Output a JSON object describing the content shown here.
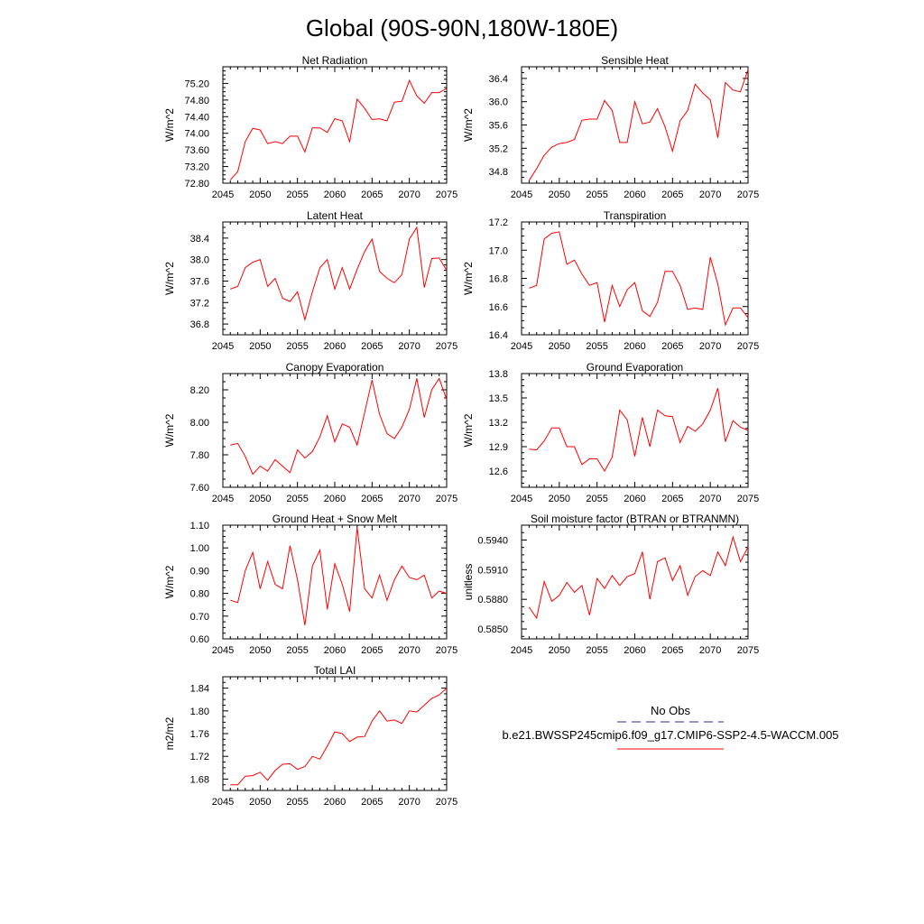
{
  "figure_title": "Global (90S-90N,180W-180E)",
  "colors": {
    "model": "#ff0000",
    "obs": "#2b2b9e",
    "axis": "#000000"
  },
  "legend": {
    "obs_label": "No Obs",
    "model_label": "b.e21.BWSSP245cmip6.f09_g17.CMIP6-SSP2-4.5-WACCM.005"
  },
  "chart_data": [
    {
      "type": "line",
      "title": "Net Radiation",
      "ylabel": "W/m^2",
      "xlim": [
        2045,
        2075
      ],
      "ylim": [
        72.8,
        75.6
      ],
      "xticks": [
        2045,
        2050,
        2055,
        2060,
        2065,
        2070,
        2075
      ],
      "xtick_labels": [
        "2045",
        "2050",
        "2055",
        "2060",
        "2065",
        "2070",
        "2075"
      ],
      "yticks": [
        72.8,
        73.2,
        73.6,
        74.0,
        74.4,
        74.8,
        75.2
      ],
      "ytick_labels": [
        "72.80",
        "73.20",
        "73.60",
        "74.00",
        "74.40",
        "74.80",
        "75.20"
      ],
      "series": [
        {
          "name": "b.e21.BWSSP245cmip6.f09_g17.CMIP6-SSP2-4.5-WACCM.005",
          "x": [
            2046,
            2047,
            2048,
            2049,
            2050,
            2051,
            2052,
            2053,
            2054,
            2055,
            2056,
            2057,
            2058,
            2059,
            2060,
            2061,
            2062,
            2063,
            2064,
            2065,
            2066,
            2067,
            2068,
            2069,
            2070,
            2071,
            2072,
            2073,
            2074,
            2075
          ],
          "values": [
            72.88,
            73.08,
            73.8,
            74.12,
            74.08,
            73.75,
            73.8,
            73.75,
            73.93,
            73.93,
            73.55,
            74.13,
            74.13,
            74.02,
            74.35,
            74.3,
            73.8,
            74.82,
            74.6,
            74.33,
            74.35,
            74.3,
            74.75,
            74.77,
            75.27,
            74.9,
            74.72,
            74.98,
            74.98,
            75.08
          ]
        }
      ]
    },
    {
      "type": "line",
      "title": "Sensible Heat",
      "ylabel": "W/m^2",
      "xlim": [
        2045,
        2075
      ],
      "ylim": [
        34.6,
        36.6
      ],
      "xticks": [
        2045,
        2050,
        2055,
        2060,
        2065,
        2070,
        2075
      ],
      "xtick_labels": [
        "2045",
        "2050",
        "2055",
        "2060",
        "2065",
        "2070",
        "2075"
      ],
      "yticks": [
        34.8,
        35.2,
        35.6,
        36.0,
        36.4
      ],
      "ytick_labels": [
        "34.8",
        "35.2",
        "35.6",
        "36.0",
        "36.4"
      ],
      "series": [
        {
          "name": "b.e21.BWSSP245cmip6.f09_g17.CMIP6-SSP2-4.5-WACCM.005",
          "x": [
            2046,
            2047,
            2048,
            2049,
            2050,
            2051,
            2052,
            2053,
            2054,
            2055,
            2056,
            2057,
            2058,
            2059,
            2060,
            2061,
            2062,
            2063,
            2064,
            2065,
            2066,
            2067,
            2068,
            2069,
            2070,
            2071,
            2072,
            2073,
            2074,
            2075
          ],
          "values": [
            34.65,
            34.85,
            35.08,
            35.22,
            35.28,
            35.3,
            35.35,
            35.68,
            35.7,
            35.7,
            36.02,
            35.85,
            35.3,
            35.3,
            36.0,
            35.62,
            35.65,
            35.88,
            35.57,
            35.15,
            35.67,
            35.85,
            36.3,
            36.15,
            36.03,
            35.38,
            36.33,
            36.2,
            36.17,
            36.55
          ]
        }
      ]
    },
    {
      "type": "line",
      "title": "Latent Heat",
      "ylabel": "W/m^2",
      "xlim": [
        2045,
        2075
      ],
      "ylim": [
        36.6,
        38.7
      ],
      "xticks": [
        2045,
        2050,
        2055,
        2060,
        2065,
        2070,
        2075
      ],
      "xtick_labels": [
        "2045",
        "2050",
        "2055",
        "2060",
        "2065",
        "2070",
        "2075"
      ],
      "yticks": [
        36.8,
        37.2,
        37.6,
        38.0,
        38.4
      ],
      "ytick_labels": [
        "36.8",
        "37.2",
        "37.6",
        "38.0",
        "38.4"
      ],
      "series": [
        {
          "name": "b.e21.BWSSP245cmip6.f09_g17.CMIP6-SSP2-4.5-WACCM.005",
          "x": [
            2046,
            2047,
            2048,
            2049,
            2050,
            2051,
            2052,
            2053,
            2054,
            2055,
            2056,
            2057,
            2058,
            2059,
            2060,
            2061,
            2062,
            2063,
            2064,
            2065,
            2066,
            2067,
            2068,
            2069,
            2070,
            2071,
            2072,
            2073,
            2074,
            2075
          ],
          "values": [
            37.45,
            37.5,
            37.85,
            37.95,
            38.0,
            37.5,
            37.65,
            37.28,
            37.22,
            37.4,
            36.88,
            37.4,
            37.85,
            38.0,
            37.45,
            37.85,
            37.45,
            37.82,
            38.15,
            38.38,
            37.78,
            37.65,
            37.57,
            37.72,
            38.38,
            38.6,
            37.48,
            38.02,
            38.03,
            37.8
          ]
        }
      ]
    },
    {
      "type": "line",
      "title": "Transpiration",
      "ylabel": "W/m^2",
      "xlim": [
        2045,
        2075
      ],
      "ylim": [
        16.4,
        17.2
      ],
      "xticks": [
        2045,
        2050,
        2055,
        2060,
        2065,
        2070,
        2075
      ],
      "xtick_labels": [
        "2045",
        "2050",
        "2055",
        "2060",
        "2065",
        "2070",
        "2075"
      ],
      "yticks": [
        16.4,
        16.6,
        16.8,
        17.0,
        17.2
      ],
      "ytick_labels": [
        "16.4",
        "16.6",
        "16.8",
        "17.0",
        "17.2"
      ],
      "series": [
        {
          "name": "b.e21.BWSSP245cmip6.f09_g17.CMIP6-SSP2-4.5-WACCM.005",
          "x": [
            2046,
            2047,
            2048,
            2049,
            2050,
            2051,
            2052,
            2053,
            2054,
            2055,
            2056,
            2057,
            2058,
            2059,
            2060,
            2061,
            2062,
            2063,
            2064,
            2065,
            2066,
            2067,
            2068,
            2069,
            2070,
            2071,
            2072,
            2073,
            2074,
            2075
          ],
          "values": [
            16.73,
            16.75,
            17.08,
            17.12,
            17.13,
            16.9,
            16.93,
            16.83,
            16.75,
            16.77,
            16.49,
            16.75,
            16.6,
            16.72,
            16.77,
            16.57,
            16.53,
            16.63,
            16.85,
            16.85,
            16.75,
            16.58,
            16.59,
            16.58,
            16.95,
            16.76,
            16.47,
            16.59,
            16.59,
            16.52
          ]
        }
      ]
    },
    {
      "type": "line",
      "title": "Canopy Evaporation",
      "ylabel": "W/m^2",
      "xlim": [
        2045,
        2075
      ],
      "ylim": [
        7.6,
        8.3
      ],
      "xticks": [
        2045,
        2050,
        2055,
        2060,
        2065,
        2070,
        2075
      ],
      "xtick_labels": [
        "2045",
        "2050",
        "2055",
        "2060",
        "2065",
        "2070",
        "2075"
      ],
      "yticks": [
        7.6,
        7.8,
        8.0,
        8.2
      ],
      "ytick_labels": [
        "7.60",
        "7.80",
        "8.00",
        "8.20"
      ],
      "series": [
        {
          "name": "b.e21.BWSSP245cmip6.f09_g17.CMIP6-SSP2-4.5-WACCM.005",
          "x": [
            2046,
            2047,
            2048,
            2049,
            2050,
            2051,
            2052,
            2053,
            2054,
            2055,
            2056,
            2057,
            2058,
            2059,
            2060,
            2061,
            2062,
            2063,
            2064,
            2065,
            2066,
            2067,
            2068,
            2069,
            2070,
            2071,
            2072,
            2073,
            2074,
            2075
          ],
          "values": [
            7.86,
            7.87,
            7.79,
            7.68,
            7.73,
            7.7,
            7.77,
            7.73,
            7.69,
            7.83,
            7.78,
            7.82,
            7.91,
            8.04,
            7.88,
            7.99,
            7.97,
            7.86,
            8.06,
            8.26,
            8.05,
            7.93,
            7.9,
            7.97,
            8.08,
            8.27,
            8.03,
            8.2,
            8.27,
            8.14
          ]
        }
      ]
    },
    {
      "type": "line",
      "title": "Ground Evaporation",
      "ylabel": "W/m^2",
      "xlim": [
        2045,
        2075
      ],
      "ylim": [
        12.4,
        13.8
      ],
      "xticks": [
        2045,
        2050,
        2055,
        2060,
        2065,
        2070,
        2075
      ],
      "xtick_labels": [
        "2045",
        "2050",
        "2055",
        "2060",
        "2065",
        "2070",
        "2075"
      ],
      "yticks": [
        12.6,
        12.9,
        13.2,
        13.5,
        13.8
      ],
      "ytick_labels": [
        "12.6",
        "12.9",
        "13.2",
        "13.5",
        "13.8"
      ],
      "series": [
        {
          "name": "b.e21.BWSSP245cmip6.f09_g17.CMIP6-SSP2-4.5-WACCM.005",
          "x": [
            2046,
            2047,
            2048,
            2049,
            2050,
            2051,
            2052,
            2053,
            2054,
            2055,
            2056,
            2057,
            2058,
            2059,
            2060,
            2061,
            2062,
            2063,
            2064,
            2065,
            2066,
            2067,
            2068,
            2069,
            2070,
            2071,
            2072,
            2073,
            2074,
            2075
          ],
          "values": [
            12.87,
            12.86,
            12.97,
            13.13,
            13.13,
            12.9,
            12.9,
            12.68,
            12.75,
            12.75,
            12.6,
            12.77,
            13.35,
            13.23,
            12.78,
            13.26,
            12.9,
            13.35,
            13.28,
            13.27,
            12.95,
            13.15,
            13.09,
            13.18,
            13.35,
            13.62,
            12.96,
            13.22,
            13.14,
            13.1
          ]
        }
      ]
    },
    {
      "type": "line",
      "title": "Ground Heat + Snow Melt",
      "ylabel": "W/m^2",
      "xlim": [
        2045,
        2075
      ],
      "ylim": [
        0.6,
        1.1
      ],
      "xticks": [
        2045,
        2050,
        2055,
        2060,
        2065,
        2070,
        2075
      ],
      "xtick_labels": [
        "2045",
        "2050",
        "2055",
        "2060",
        "2065",
        "2070",
        "2075"
      ],
      "yticks": [
        0.6,
        0.7,
        0.8,
        0.9,
        1.0,
        1.1
      ],
      "ytick_labels": [
        "0.60",
        "0.70",
        "0.80",
        "0.90",
        "1.00",
        "1.10"
      ],
      "series": [
        {
          "name": "b.e21.BWSSP245cmip6.f09_g17.CMIP6-SSP2-4.5-WACCM.005",
          "x": [
            2046,
            2047,
            2048,
            2049,
            2050,
            2051,
            2052,
            2053,
            2054,
            2055,
            2056,
            2057,
            2058,
            2059,
            2060,
            2061,
            2062,
            2063,
            2064,
            2065,
            2066,
            2067,
            2068,
            2069,
            2070,
            2071,
            2072,
            2073,
            2074,
            2075
          ],
          "values": [
            0.77,
            0.76,
            0.9,
            0.98,
            0.82,
            0.94,
            0.84,
            0.82,
            1.01,
            0.86,
            0.66,
            0.92,
            0.99,
            0.73,
            0.93,
            0.84,
            0.72,
            1.09,
            0.82,
            0.78,
            0.88,
            0.77,
            0.86,
            0.92,
            0.87,
            0.86,
            0.88,
            0.78,
            0.81,
            0.8
          ]
        }
      ]
    },
    {
      "type": "line",
      "title": "Soil moisture factor (BTRAN or BTRANMN)",
      "ylabel": "unitless",
      "xlim": [
        2045,
        2075
      ],
      "ylim": [
        0.584,
        0.5955
      ],
      "xticks": [
        2045,
        2050,
        2055,
        2060,
        2065,
        2070,
        2075
      ],
      "xtick_labels": [
        "2045",
        "2050",
        "2055",
        "2060",
        "2065",
        "2070",
        "2075"
      ],
      "yticks": [
        0.585,
        0.588,
        0.591,
        0.594
      ],
      "ytick_labels": [
        "0.5850",
        "0.5880",
        "0.5910",
        "0.5940"
      ],
      "series": [
        {
          "name": "b.e21.BWSSP245cmip6.f09_g17.CMIP6-SSP2-4.5-WACCM.005",
          "x": [
            2046,
            2047,
            2048,
            2049,
            2050,
            2051,
            2052,
            2053,
            2054,
            2055,
            2056,
            2057,
            2058,
            2059,
            2060,
            2061,
            2062,
            2063,
            2064,
            2065,
            2066,
            2067,
            2068,
            2069,
            2070,
            2071,
            2072,
            2073,
            2074,
            2075
          ],
          "values": [
            0.5872,
            0.5861,
            0.5898,
            0.5878,
            0.5884,
            0.5897,
            0.5887,
            0.5894,
            0.5864,
            0.5901,
            0.5891,
            0.5904,
            0.5894,
            0.5903,
            0.5906,
            0.5928,
            0.588,
            0.5918,
            0.5922,
            0.5899,
            0.5914,
            0.5884,
            0.5903,
            0.5909,
            0.5904,
            0.5928,
            0.5914,
            0.5943,
            0.5918,
            0.5933
          ]
        }
      ]
    },
    {
      "type": "line",
      "title": "Total LAI",
      "ylabel": "m2/m2",
      "xlim": [
        2045,
        2075
      ],
      "ylim": [
        1.66,
        1.86
      ],
      "xticks": [
        2045,
        2050,
        2055,
        2060,
        2065,
        2070,
        2075
      ],
      "xtick_labels": [
        "2045",
        "2050",
        "2055",
        "2060",
        "2065",
        "2070",
        "2075"
      ],
      "yticks": [
        1.68,
        1.72,
        1.76,
        1.8,
        1.84
      ],
      "ytick_labels": [
        "1.68",
        "1.72",
        "1.76",
        "1.80",
        "1.84"
      ],
      "series": [
        {
          "name": "b.e21.BWSSP245cmip6.f09_g17.CMIP6-SSP2-4.5-WACCM.005",
          "x": [
            2046,
            2047,
            2048,
            2049,
            2050,
            2051,
            2052,
            2053,
            2054,
            2055,
            2056,
            2057,
            2058,
            2059,
            2060,
            2061,
            2062,
            2063,
            2064,
            2065,
            2066,
            2067,
            2068,
            2069,
            2070,
            2071,
            2072,
            2073,
            2074,
            2075
          ],
          "values": [
            1.67,
            1.67,
            1.685,
            1.686,
            1.692,
            1.678,
            1.695,
            1.706,
            1.707,
            1.697,
            1.702,
            1.72,
            1.715,
            1.738,
            1.763,
            1.76,
            1.746,
            1.754,
            1.755,
            1.782,
            1.8,
            1.782,
            1.784,
            1.778,
            1.8,
            1.798,
            1.81,
            1.822,
            1.828,
            1.84
          ]
        }
      ]
    }
  ]
}
